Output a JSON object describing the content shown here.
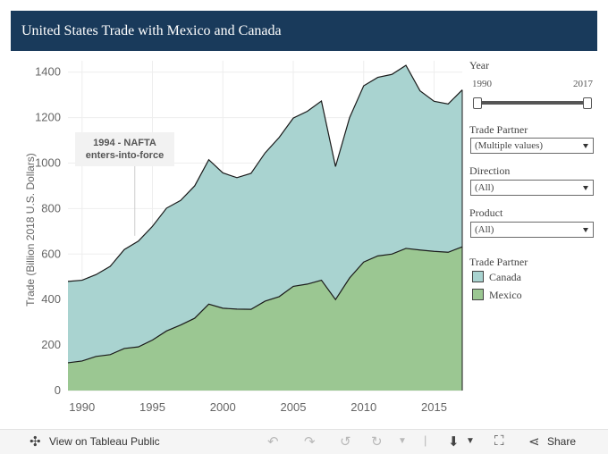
{
  "title": "United States Trade with Mexico and Canada",
  "chart_data": {
    "type": "area",
    "stacked": true,
    "ylabel": "Trade (Billion 2018 U.S. Dollars)",
    "xlabel": "",
    "xlim": [
      1989,
      2017
    ],
    "ylim": [
      0,
      1450
    ],
    "x_ticks": [
      "1990",
      "1995",
      "2000",
      "2005",
      "2010",
      "2015"
    ],
    "y_ticks": [
      "0",
      "200",
      "400",
      "600",
      "800",
      "1000",
      "1200",
      "1400"
    ],
    "grid": true,
    "x": [
      1989,
      1990,
      1991,
      1992,
      1993,
      1994,
      1995,
      1996,
      1997,
      1998,
      1999,
      2000,
      2001,
      2002,
      2003,
      2004,
      2005,
      2006,
      2007,
      2008,
      2009,
      2010,
      2011,
      2012,
      2013,
      2014,
      2015,
      2016,
      2017
    ],
    "series": [
      {
        "name": "Mexico",
        "color": "#9bc792",
        "values": [
          122,
          130,
          150,
          158,
          185,
          192,
          222,
          262,
          288,
          318,
          380,
          362,
          358,
          357,
          393,
          413,
          458,
          468,
          485,
          400,
          495,
          565,
          592,
          600,
          625,
          618,
          612,
          608,
          632
        ]
      },
      {
        "name": "Canada",
        "color": "#a9d3d0",
        "values": [
          358,
          355,
          360,
          388,
          435,
          465,
          500,
          540,
          548,
          582,
          635,
          595,
          578,
          598,
          652,
          700,
          740,
          760,
          788,
          585,
          705,
          775,
          785,
          790,
          805,
          700,
          660,
          652,
          690
        ]
      }
    ],
    "annotations": [
      {
        "text_line1": "1994 - NAFTA",
        "text_line2": "enters-into-force",
        "x": 1994
      }
    ]
  },
  "filters": {
    "year": {
      "label": "Year",
      "min_label": "1990",
      "max_label": "2017"
    },
    "trade_partner": {
      "label": "Trade Partner",
      "value": "(Multiple values)"
    },
    "direction": {
      "label": "Direction",
      "value": "(All)"
    },
    "product": {
      "label": "Product",
      "value": "(All)"
    }
  },
  "legend": {
    "title": "Trade Partner",
    "items": [
      {
        "label": "Canada",
        "color": "#a9d3d0"
      },
      {
        "label": "Mexico",
        "color": "#9bc792"
      }
    ]
  },
  "footer": {
    "view_label": "View on Tableau Public",
    "share_label": "Share"
  }
}
